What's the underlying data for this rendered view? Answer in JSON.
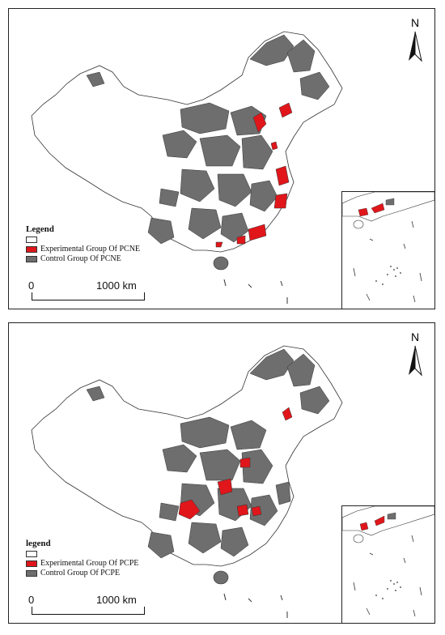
{
  "maps": [
    {
      "id": "pcne",
      "legend_title": "Legend",
      "legend_items": [
        {
          "label": "",
          "color": "#ffffff"
        },
        {
          "label": "Experimental Group Of  PCNE",
          "color": "#e0161b"
        },
        {
          "label": "Control Group Of  PCNE",
          "color": "#6e6e6e"
        }
      ],
      "scale": {
        "zero": "0",
        "distance": "1000 km"
      },
      "north_label": "N"
    },
    {
      "id": "pcpe",
      "legend_title": "legend",
      "legend_items": [
        {
          "label": "",
          "color": "#ffffff"
        },
        {
          "label": "Experimental Group Of  PCPE",
          "color": "#e0161b"
        },
        {
          "label": "Control Group Of  PCPE",
          "color": "#6e6e6e"
        }
      ],
      "scale": {
        "zero": "0",
        "distance": "1000 km"
      },
      "north_label": "N"
    }
  ]
}
